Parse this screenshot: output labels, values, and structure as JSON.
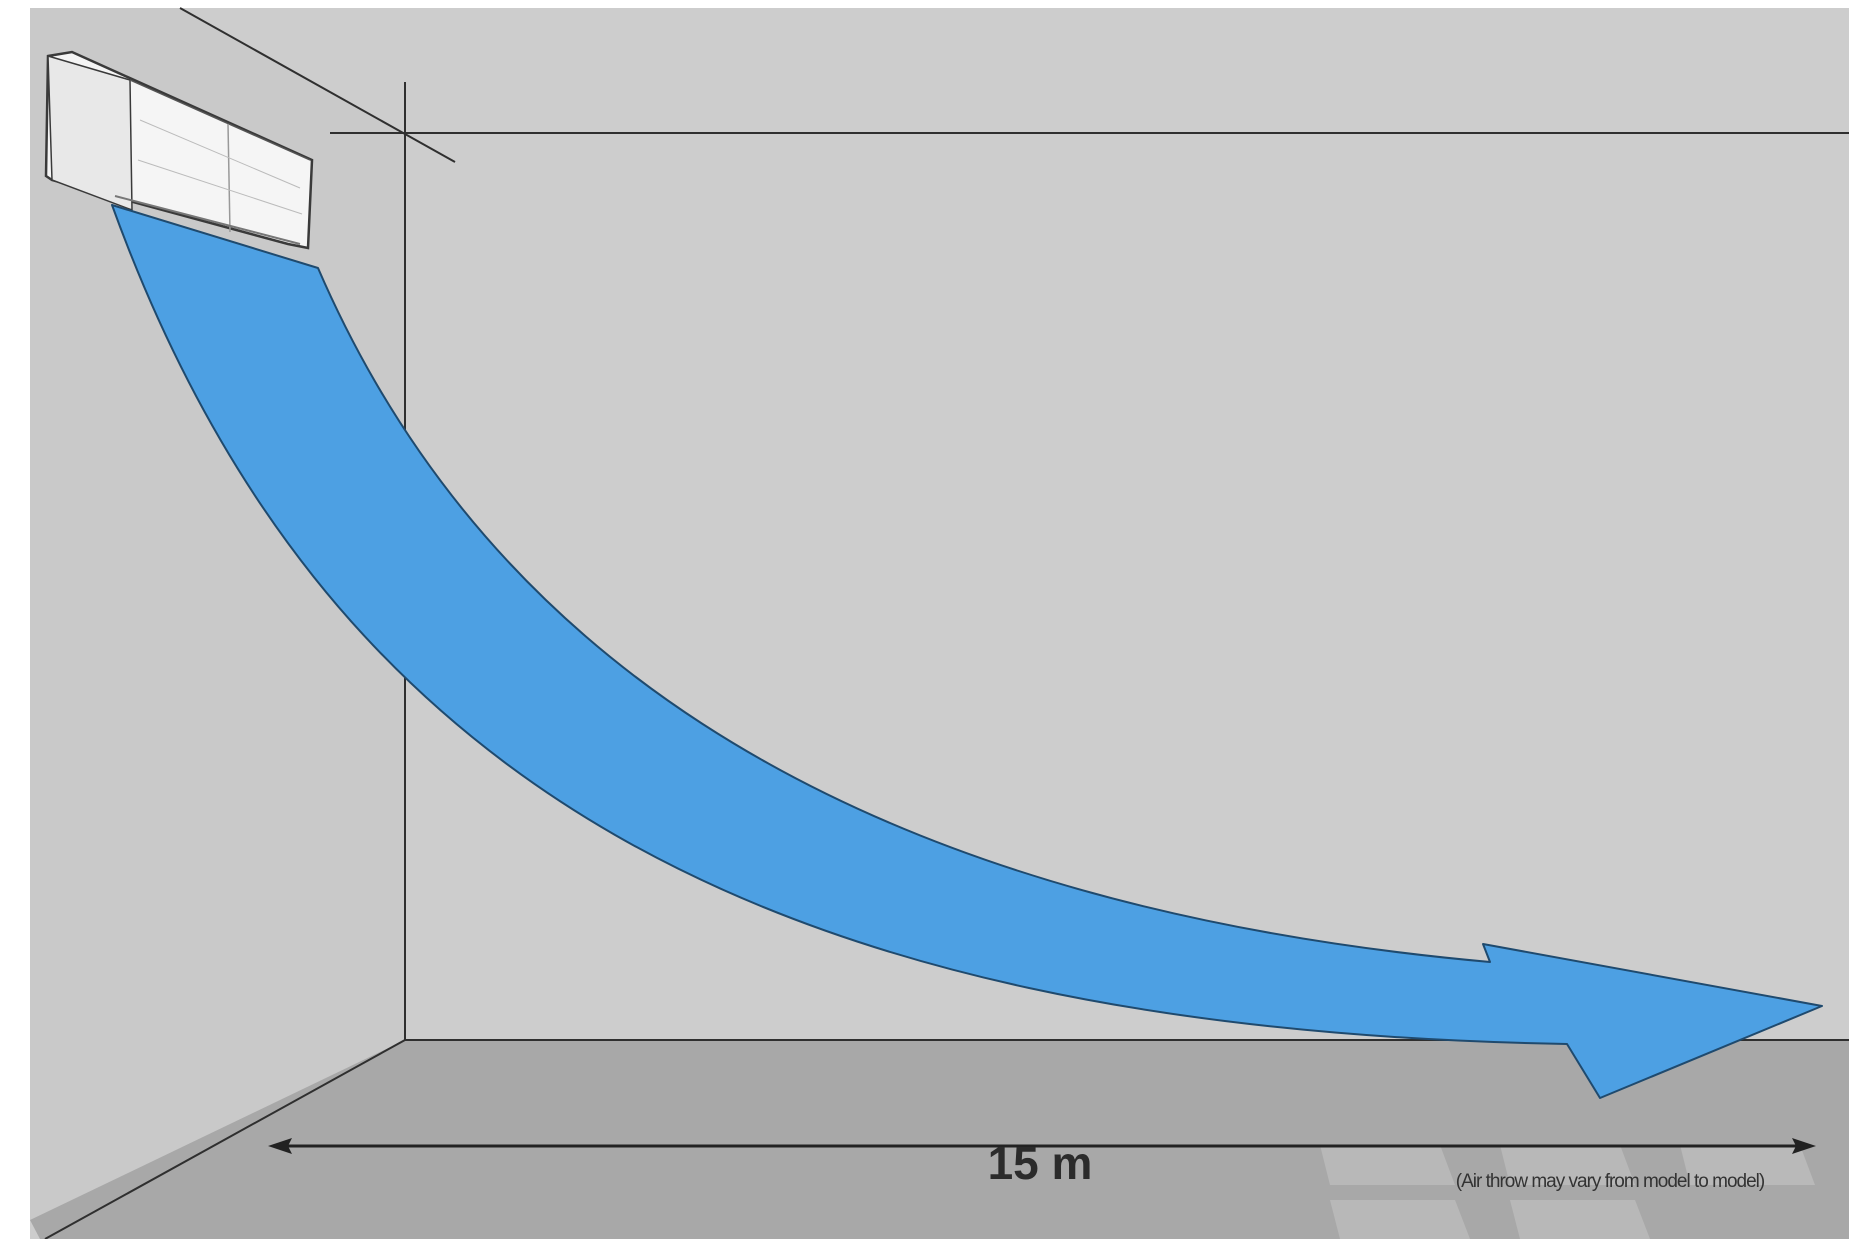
{
  "diagram": {
    "distance_label": "15 m",
    "note": "(Air throw may vary from model to model)",
    "colors": {
      "wall": "#cdcdcd",
      "side_wall": "#c8c8c8",
      "floor": "#a9a9a9",
      "airflow": "#4da0e3",
      "unit": "#f4f4f4",
      "line": "#2f2f2f"
    },
    "icons": [
      "air-conditioner-icon",
      "airflow-arrow-icon",
      "double-arrow-icon"
    ]
  }
}
